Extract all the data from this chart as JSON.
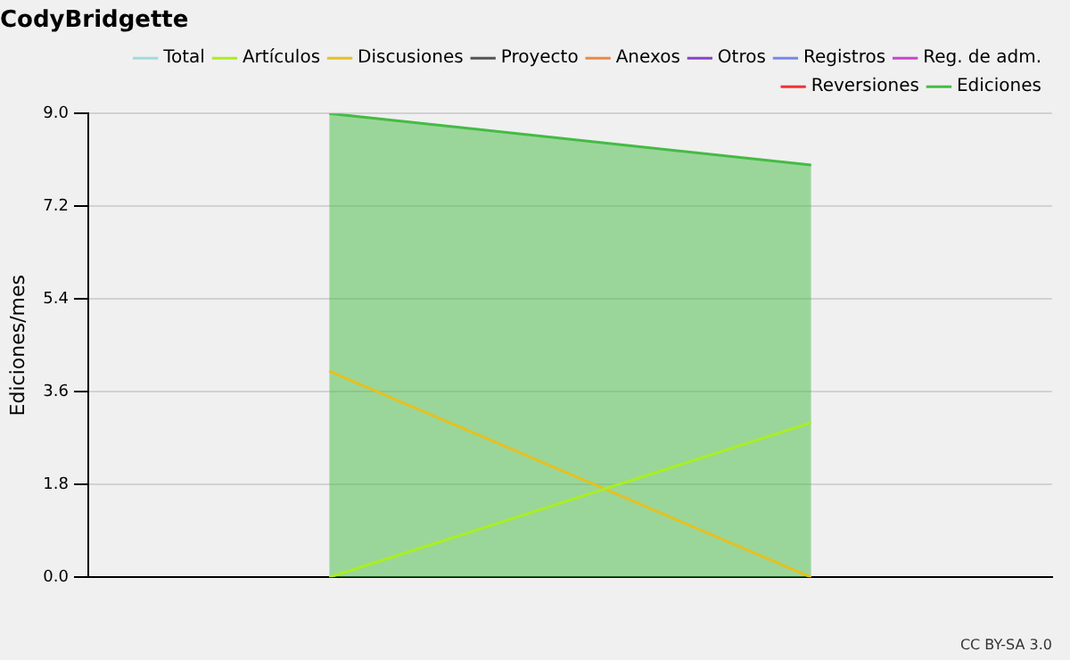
{
  "chart_data": {
    "type": "line",
    "title": "CodyBridgette",
    "ylabel": "Ediciones/mes",
    "categories": [
      null,
      null
    ],
    "series": [
      {
        "name": "Total",
        "color": "#a0dcdc",
        "values": [
          null,
          null
        ]
      },
      {
        "name": "Ediciones",
        "color": "#44bb44",
        "type": "area",
        "values": [
          9,
          8
        ]
      },
      {
        "name": "Artículos",
        "color": "#aaee22",
        "values": [
          0,
          3
        ]
      },
      {
        "name": "Discusiones",
        "color": "#e6c020",
        "values": [
          4,
          0
        ]
      },
      {
        "name": "Proyecto",
        "color": "#555555",
        "values": [
          null,
          null
        ]
      },
      {
        "name": "Anexos",
        "color": "#ee8844",
        "values": [
          null,
          null
        ]
      },
      {
        "name": "Otros",
        "color": "#8844cc",
        "values": [
          null,
          null
        ]
      },
      {
        "name": "Registros",
        "color": "#7788ee",
        "values": [
          null,
          null
        ]
      },
      {
        "name": "Reg. de adm.",
        "color": "#cc44cc",
        "values": [
          null,
          null
        ]
      },
      {
        "name": "Reversiones",
        "color": "#ee3333",
        "values": [
          null,
          null
        ]
      }
    ],
    "ylim": [
      0,
      9
    ],
    "yticks": [
      {
        "value": 0,
        "label": "0.0"
      },
      {
        "value": 1.8,
        "label": "1.8"
      },
      {
        "value": 3.6,
        "label": "3.6"
      },
      {
        "value": 5.4,
        "label": "5.4"
      },
      {
        "value": 7.2,
        "label": "7.2"
      },
      {
        "value": 9,
        "label": "9.0"
      }
    ],
    "grid": "y",
    "legend": "top right",
    "marker": "none",
    "line_style": "solid",
    "annotations": [
      "CC BY-SA 3.0"
    ]
  }
}
